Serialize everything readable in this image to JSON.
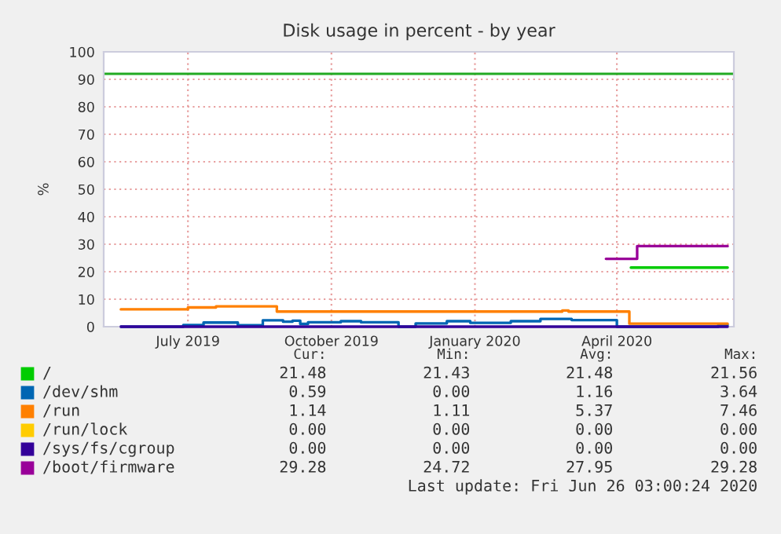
{
  "chart_data": {
    "type": "step",
    "title": "Disk usage in percent - by year",
    "ylabel": "%",
    "xlim": [
      "2019-05-23",
      "2020-06-30"
    ],
    "ylim": [
      0,
      100
    ],
    "yticks": [
      0,
      10,
      20,
      30,
      40,
      50,
      60,
      70,
      80,
      90,
      100
    ],
    "xticks": [
      {
        "value": "2019-07-16",
        "label": "July 2019"
      },
      {
        "value": "2019-10-16",
        "label": "October 2019"
      },
      {
        "value": "2020-01-16",
        "label": "January 2020"
      },
      {
        "value": "2020-04-16",
        "label": "April 2020"
      }
    ],
    "grid": true,
    "legend": "bottom",
    "ref_lines": [
      {
        "axis": "y",
        "value": 92,
        "color": "#22aa22"
      }
    ],
    "series": [
      {
        "name": "/",
        "color": "#00cc00",
        "x": [
          "2020-04-25",
          "2020-06-26"
        ],
        "values": [
          21.5,
          21.5
        ]
      },
      {
        "name": "/dev/shm",
        "color": "#0066b3",
        "x": [
          "2019-06-03",
          "2019-07-13",
          "2019-07-26",
          "2019-08-17",
          "2019-09-02",
          "2019-09-15",
          "2019-09-21",
          "2019-09-26",
          "2019-10-01",
          "2019-10-22",
          "2019-11-04",
          "2019-11-28",
          "2019-12-09",
          "2019-12-29",
          "2020-01-13",
          "2020-02-08",
          "2020-02-27",
          "2020-03-18",
          "2020-04-16",
          "2020-06-20",
          "2020-06-26"
        ],
        "values": [
          0,
          0.6,
          1.5,
          0.5,
          2.3,
          1.8,
          2.2,
          1.0,
          1.6,
          2.0,
          1.6,
          0,
          1.2,
          2.0,
          1.4,
          2.0,
          2.8,
          2.4,
          0,
          0.6,
          0.6
        ]
      },
      {
        "name": "/run",
        "color": "#ff8000",
        "x": [
          "2019-06-03",
          "2019-07-16",
          "2019-08-03",
          "2019-09-11",
          "2020-03-12",
          "2020-03-16",
          "2020-04-24",
          "2020-06-26"
        ],
        "values": [
          6.3,
          7.0,
          7.4,
          5.5,
          5.9,
          5.5,
          1.1,
          1.1
        ]
      },
      {
        "name": "/run/lock",
        "color": "#ffcc00"
      },
      {
        "name": "/sys/fs/cgroup",
        "color": "#330099",
        "x": [
          "2019-06-03",
          "2020-06-26"
        ],
        "values": [
          0,
          0
        ]
      },
      {
        "name": "/boot/firmware",
        "color": "#990099",
        "x": [
          "2020-04-09",
          "2020-04-29",
          "2020-06-26"
        ],
        "values": [
          24.7,
          29.3,
          29.3
        ]
      }
    ],
    "annotations": [
      "Cur:",
      "Min:",
      "Avg:",
      "Max:",
      "21.48",
      "21.43",
      "21.48",
      "21.56",
      "0.59",
      "0.00",
      "1.16",
      "3.64",
      "1.14",
      "1.11",
      "5.37",
      "7.46",
      "0.00",
      "0.00",
      "0.00",
      "0.00",
      "0.00",
      "0.00",
      "0.00",
      "0.00",
      "29.28",
      "24.72",
      "27.95",
      "29.28",
      "Last update: Fri Jun 26 03:00:24 2020"
    ]
  }
}
